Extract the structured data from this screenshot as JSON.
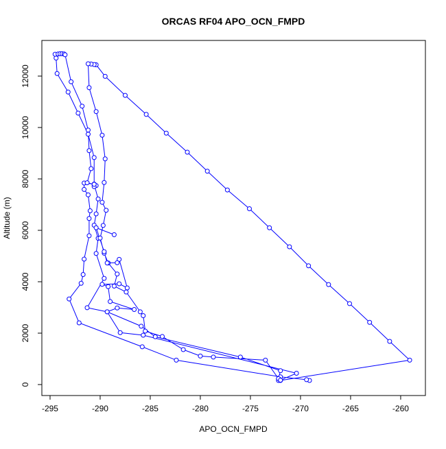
{
  "chart_data": {
    "type": "line",
    "title": "ORCAS RF04 APO_OCN_FMPD",
    "x_label": "APO_OCN_FMPD",
    "y_label": "Altitude (m)",
    "x": [
      -269.1,
      -269.4,
      -272,
      -282.4,
      -285.8,
      -292.1,
      -293.1,
      -291.9,
      -291.7,
      -291.6,
      -291.1,
      -291.1,
      -291.0,
      -291.2,
      -291.6,
      -291.6,
      -290.6,
      -290.6,
      -290.4,
      -290.6,
      -290.6,
      -291.2,
      -292.2,
      -293.2,
      -294.3,
      -294.4,
      -294.5,
      -294.2,
      -294.0,
      -293.8,
      -293.6,
      -293.5,
      -292.9,
      -291.8,
      -291.2,
      -291.1,
      -290.9,
      -291.3,
      -290.6,
      -290.2,
      -290.4,
      -290.6,
      -290.2,
      -290.4,
      -289.6,
      -291.3,
      -289.3,
      -285.9,
      -284.5,
      -276.0,
      -272.0,
      -272.2,
      -272.1,
      -272.2,
      -272.0,
      -259.1,
      -261.1,
      -263.1,
      -265.1,
      -267.2,
      -269.2,
      -271.1,
      -273.1,
      -275.1,
      -277.3,
      -279.3,
      -281.3,
      -283.4,
      -285.4,
      -287.5,
      -289.5,
      -290.4,
      -290.6,
      -290.9,
      -291.2,
      -291.1,
      -290.4,
      -289.8,
      -289.5,
      -289.6,
      -289.8,
      -289.4,
      -289.7,
      -290.0,
      -289.6,
      -289.2,
      -288.3,
      -288.6,
      -287.4,
      -286.0,
      -285.7,
      -285.5,
      -283.8,
      -281.7,
      -280.0,
      -278.7,
      -273.5,
      -272.2,
      -272.0,
      -270.4,
      -285.7,
      -288.0,
      -289.3,
      -288.3,
      -286.6,
      -289.0,
      -289.2,
      -289.8,
      -288.1,
      -287.3,
      -288.1,
      -288.3,
      -289.3,
      -289.6,
      -290.4,
      -288.6
    ],
    "series": [
      {
        "name": "APO_OCN_FMPD",
        "color": "#0000ff",
        "values": [
          160,
          190,
          300,
          950,
          1470,
          2400,
          3330,
          3940,
          4280,
          4880,
          5790,
          6460,
          6760,
          7380,
          7590,
          7840,
          7800,
          7760,
          7740,
          7700,
          8830,
          9740,
          10560,
          11380,
          12100,
          12700,
          12850,
          12860,
          12870,
          12870,
          12860,
          12830,
          11780,
          10830,
          9900,
          9100,
          8400,
          7850,
          7790,
          7220,
          6640,
          6200,
          5690,
          5100,
          4130,
          2990,
          2830,
          2270,
          1860,
          1070,
          540,
          220,
          200,
          160,
          160,
          950,
          1680,
          2420,
          3150,
          3890,
          4620,
          5360,
          6100,
          6840,
          7570,
          8300,
          9040,
          9780,
          10510,
          11250,
          11990,
          12440,
          12450,
          12470,
          12480,
          11550,
          10620,
          9700,
          8780,
          7860,
          7090,
          6780,
          6190,
          5700,
          5110,
          4730,
          4300,
          3830,
          3600,
          2830,
          2680,
          2080,
          1870,
          1360,
          1110,
          1070,
          950,
          230,
          170,
          440,
          1920,
          2020,
          2830,
          2980,
          2920,
          3230,
          3810,
          3900,
          3920,
          3760,
          4870,
          4740,
          4730,
          5170,
          6100,
          5830
        ]
      }
    ],
    "xlim": [
      -295.82,
      -257.53
    ],
    "ylim": [
      -427,
      13387
    ],
    "xticks": [
      -295,
      -290,
      -285,
      -280,
      -275,
      -270,
      -265,
      -260
    ],
    "yticks": [
      0,
      2000,
      4000,
      6000,
      8000,
      10000,
      12000
    ]
  }
}
